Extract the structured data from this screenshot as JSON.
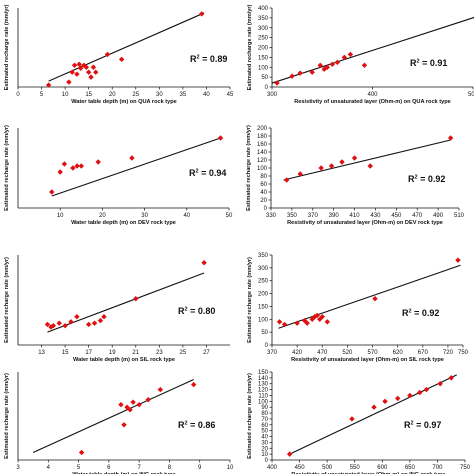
{
  "colors": {
    "point": "#e01010",
    "line": "#111111",
    "axis": "#111111"
  },
  "chart_data": [
    {
      "type": "scatter",
      "xlabel": "Water table depth (m) on QUA rock type",
      "ylabel": "Estimated recharge rate (mm/yr)",
      "xlim": [
        0,
        45
      ],
      "ylim": [
        0,
        400
      ],
      "xticks": [
        0,
        5,
        10,
        15,
        20,
        25,
        30,
        35,
        40,
        45
      ],
      "yticks": [],
      "r2_label": "R",
      "r2_sup": "2",
      "r2_value": " = 0.89",
      "points": [
        [
          6.5,
          10
        ],
        [
          10.8,
          25
        ],
        [
          11.5,
          75
        ],
        [
          12,
          110
        ],
        [
          12.5,
          65
        ],
        [
          13,
          115
        ],
        [
          13.3,
          95
        ],
        [
          14,
          110
        ],
        [
          14.5,
          100
        ],
        [
          15,
          75
        ],
        [
          15.5,
          50
        ],
        [
          16,
          100
        ],
        [
          16.5,
          75
        ],
        [
          19,
          165
        ],
        [
          22,
          140
        ],
        [
          39,
          370
        ]
      ],
      "trendline": [
        [
          6.5,
          30
        ],
        [
          39.5,
          375
        ]
      ]
    },
    {
      "type": "scatter",
      "xlabel": "Resistivity of unsaturated layer (Ohm-m) on QUA rock type",
      "ylabel": "Estimated recharge rate (mm/yr)",
      "xlim": [
        300,
        500
      ],
      "ylim": [
        0,
        400
      ],
      "xticks": [
        300,
        400,
        500
      ],
      "yticks": [
        0,
        50,
        100,
        150,
        200,
        250,
        300,
        350,
        400
      ],
      "r2_label": "R",
      "r2_sup": "2",
      "r2_value": " = 0.91",
      "points": [
        [
          305,
          20
        ],
        [
          320,
          55
        ],
        [
          328,
          70
        ],
        [
          340,
          75
        ],
        [
          348,
          110
        ],
        [
          352,
          90
        ],
        [
          355,
          100
        ],
        [
          360,
          115
        ],
        [
          365,
          125
        ],
        [
          372,
          150
        ],
        [
          378,
          165
        ],
        [
          392,
          110
        ],
        [
          513,
          370
        ]
      ],
      "trendline": [
        [
          300,
          20
        ],
        [
          515,
          375
        ]
      ]
    },
    {
      "type": "scatter",
      "xlabel": "Water table depth (m) on DEV rock type",
      "ylabel": "Estimated recharge rate (mm/yr)",
      "xlim": [
        0,
        50
      ],
      "ylim": [
        0,
        200
      ],
      "xticks": [
        10,
        20,
        30,
        40,
        50
      ],
      "yticks": [],
      "r2_label": "R",
      "r2_sup": "2",
      "r2_value": " = 0.94",
      "points": [
        [
          8,
          40
        ],
        [
          10,
          90
        ],
        [
          11,
          110
        ],
        [
          13,
          100
        ],
        [
          14,
          105
        ],
        [
          15,
          105
        ],
        [
          19,
          115
        ],
        [
          27,
          125
        ],
        [
          48,
          175
        ]
      ],
      "trendline": [
        [
          8,
          30
        ],
        [
          48,
          175
        ]
      ]
    },
    {
      "type": "scatter",
      "xlabel": "Resistivity of unsaturated layer (Ohm-m) on DEV rock type",
      "ylabel": "Estimated recharge rate (mm/yr)",
      "xlim": [
        330,
        510
      ],
      "ylim": [
        0,
        200
      ],
      "xticks": [
        330,
        350,
        370,
        390,
        410,
        430,
        450,
        470,
        490,
        510
      ],
      "yticks": [
        0,
        20,
        40,
        60,
        80,
        100,
        120,
        140,
        160,
        180,
        200
      ],
      "r2_label": "R",
      "r2_sup": "2",
      "r2_value": " = 0.92",
      "points": [
        [
          345,
          70
        ],
        [
          358,
          85
        ],
        [
          378,
          100
        ],
        [
          388,
          105
        ],
        [
          398,
          115
        ],
        [
          410,
          125
        ],
        [
          425,
          105
        ],
        [
          502,
          175
        ]
      ],
      "trendline": [
        [
          342,
          70
        ],
        [
          502,
          170
        ]
      ]
    },
    {
      "type": "scatter",
      "xlabel": "Water table depth (m) on SIL rock type",
      "ylabel": "Estimated recharge rate (mm/yr)",
      "xlim": [
        11,
        29
      ],
      "ylim": [
        0,
        350
      ],
      "xticks": [
        13,
        15,
        17,
        19,
        21,
        23,
        25,
        27
      ],
      "yticks": [],
      "r2_label": "R",
      "r2_sup": "2",
      "r2_value": " = 0.80",
      "points": [
        [
          13.5,
          80
        ],
        [
          13.8,
          70
        ],
        [
          14,
          75
        ],
        [
          14.5,
          85
        ],
        [
          15,
          75
        ],
        [
          15.5,
          90
        ],
        [
          16,
          110
        ],
        [
          17,
          80
        ],
        [
          17.5,
          85
        ],
        [
          18,
          95
        ],
        [
          18.3,
          110
        ],
        [
          21,
          180
        ],
        [
          26.8,
          320
        ]
      ],
      "trendline": [
        [
          13.5,
          50
        ],
        [
          26.8,
          280
        ]
      ]
    },
    {
      "type": "scatter",
      "xlabel": "Resistivity of unsaturated layer (Ohm-m) on SIL rock type",
      "ylabel": "Estimated recharge rate (mm/yr)",
      "xlim": [
        370,
        750
      ],
      "ylim": [
        0,
        350
      ],
      "xticks": [
        370,
        420,
        470,
        520,
        570,
        620,
        670,
        720,
        750
      ],
      "yticks": [
        0,
        50,
        100,
        150,
        200,
        250,
        300,
        350
      ],
      "r2_label": "R",
      "r2_sup": "2",
      "r2_value": " = 0.92",
      "points": [
        [
          385,
          90
        ],
        [
          395,
          80
        ],
        [
          420,
          85
        ],
        [
          435,
          95
        ],
        [
          440,
          85
        ],
        [
          450,
          100
        ],
        [
          455,
          110
        ],
        [
          460,
          115
        ],
        [
          465,
          100
        ],
        [
          470,
          110
        ],
        [
          480,
          90
        ],
        [
          575,
          180
        ],
        [
          740,
          330
        ]
      ],
      "trendline": [
        [
          383,
          65
        ],
        [
          745,
          310
        ]
      ]
    },
    {
      "type": "scatter",
      "xlabel": "Water table depth (m) on ING rock type",
      "ylabel": "Estimated recharge rate (mm/yr)",
      "xlim": [
        3,
        10
      ],
      "ylim": [
        0,
        175
      ],
      "xticks": [
        3,
        4,
        5,
        6,
        7,
        8,
        9,
        10
      ],
      "yticks": [],
      "r2_label": "R",
      "r2_sup": "2",
      "r2_value": " = 0.86",
      "points": [
        [
          5.1,
          15
        ],
        [
          6.4,
          110
        ],
        [
          6.5,
          70
        ],
        [
          6.6,
          105
        ],
        [
          6.7,
          100
        ],
        [
          6.8,
          115
        ],
        [
          7,
          110
        ],
        [
          7.3,
          120
        ],
        [
          7.7,
          140
        ],
        [
          8.8,
          150
        ]
      ],
      "trendline": [
        [
          3.5,
          15
        ],
        [
          8.8,
          160
        ]
      ]
    },
    {
      "type": "scatter",
      "xlabel": "Resistivity of unsaturated layer (Ohm-m) on ING rock type",
      "ylabel": "Estimated recharge rate (mm/yr)",
      "xlim": [
        400,
        750
      ],
      "ylim": [
        0,
        150
      ],
      "xticks": [
        400,
        450,
        500,
        550,
        600,
        650,
        700,
        750
      ],
      "yticks": [
        0,
        10,
        20,
        30,
        40,
        50,
        60,
        70,
        80,
        90,
        100,
        110,
        120,
        130,
        140,
        150
      ],
      "r2_label": "R",
      "r2_sup": "2",
      "r2_value": " = 0.97",
      "points": [
        [
          432,
          10
        ],
        [
          545,
          70
        ],
        [
          585,
          90
        ],
        [
          605,
          100
        ],
        [
          628,
          105
        ],
        [
          650,
          110
        ],
        [
          668,
          115
        ],
        [
          680,
          120
        ],
        [
          705,
          130
        ],
        [
          725,
          140
        ]
      ],
      "trendline": [
        [
          432,
          10
        ],
        [
          735,
          145
        ]
      ]
    }
  ]
}
